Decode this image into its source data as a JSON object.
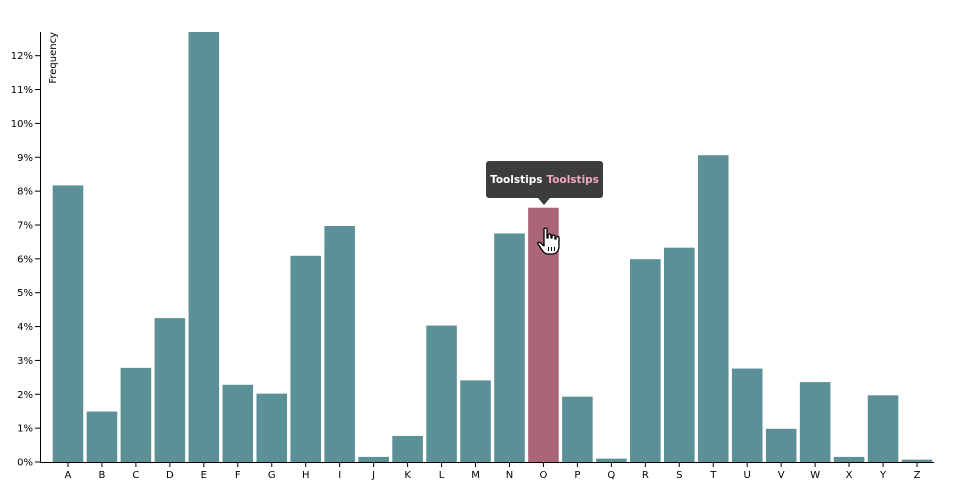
{
  "chart_data": {
    "type": "bar",
    "title": "",
    "xlabel": "",
    "ylabel": "Frequency",
    "ylim": [
      0,
      0.127
    ],
    "y_ticks": [
      "0%",
      "1%",
      "2%",
      "3%",
      "4%",
      "5%",
      "6%",
      "7%",
      "8%",
      "9%",
      "10%",
      "11%",
      "12%"
    ],
    "categories": [
      "A",
      "B",
      "C",
      "D",
      "E",
      "F",
      "G",
      "H",
      "I",
      "J",
      "K",
      "L",
      "M",
      "N",
      "O",
      "P",
      "Q",
      "R",
      "S",
      "T",
      "U",
      "V",
      "W",
      "X",
      "Y",
      "Z"
    ],
    "values": [
      0.0817,
      0.0149,
      0.0278,
      0.0425,
      0.127,
      0.0228,
      0.0202,
      0.0609,
      0.0697,
      0.0015,
      0.0077,
      0.0403,
      0.0241,
      0.0675,
      0.0751,
      0.0193,
      0.001,
      0.0599,
      0.0633,
      0.0906,
      0.0276,
      0.0098,
      0.0236,
      0.0015,
      0.0197,
      0.0007
    ],
    "bar_color": "#5b9096",
    "highlight_color": "#ab6579",
    "highlighted": "O"
  },
  "tooltip": {
    "label": "Toolstips",
    "value": "Toolstips"
  },
  "icons": {
    "cursor": "hand-pointer-icon"
  }
}
